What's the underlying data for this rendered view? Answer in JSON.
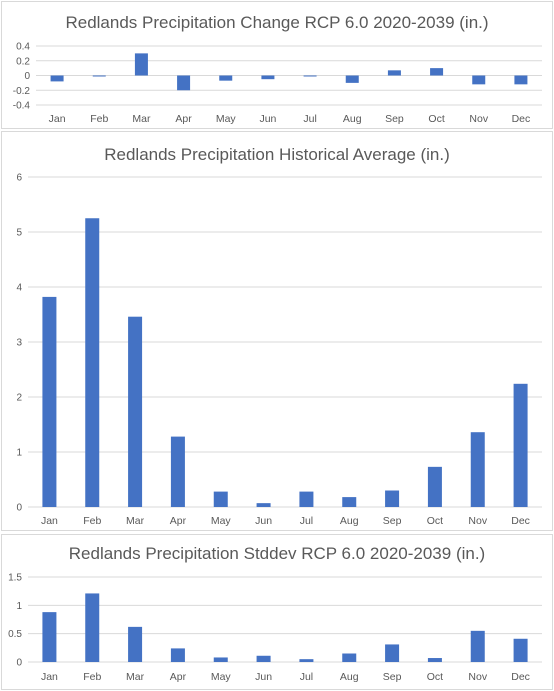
{
  "chart_data": [
    {
      "type": "bar",
      "title": "Redlands Precipitation Change RCP 6.0 2020-2039 (in.)",
      "categories": [
        "Jan",
        "Feb",
        "Mar",
        "Apr",
        "May",
        "Jun",
        "Jul",
        "Aug",
        "Sep",
        "Oct",
        "Nov",
        "Dec"
      ],
      "values": [
        -0.08,
        -0.01,
        0.3,
        -0.2,
        -0.07,
        -0.05,
        -0.01,
        -0.1,
        0.07,
        0.1,
        -0.12,
        -0.12
      ],
      "ylim": [
        -0.4,
        0.4
      ],
      "yticks": [
        "0.4",
        "0.2",
        "0",
        "-0.2",
        "-0.4"
      ],
      "xlabel": "",
      "ylabel": "",
      "grid": true,
      "bar_color": "#4472c4"
    },
    {
      "type": "bar",
      "title": "Redlands Precipitation Historical Average (in.)",
      "categories": [
        "Jan",
        "Feb",
        "Mar",
        "Apr",
        "May",
        "Jun",
        "Jul",
        "Aug",
        "Sep",
        "Oct",
        "Nov",
        "Dec"
      ],
      "values": [
        3.82,
        5.25,
        3.46,
        1.28,
        0.28,
        0.07,
        0.28,
        0.18,
        0.3,
        0.73,
        1.36,
        2.24
      ],
      "ylim": [
        0,
        6
      ],
      "yticks": [
        "6",
        "5",
        "4",
        "3",
        "2",
        "1",
        "0"
      ],
      "xlabel": "",
      "ylabel": "",
      "grid": true,
      "bar_color": "#4472c4"
    },
    {
      "type": "bar",
      "title": "Redlands Precipitation Stddev RCP 6.0 2020-2039 (in.)",
      "categories": [
        "Jan",
        "Feb",
        "Mar",
        "Apr",
        "May",
        "Jun",
        "Jul",
        "Aug",
        "Sep",
        "Oct",
        "Nov",
        "Dec"
      ],
      "values": [
        0.88,
        1.21,
        0.62,
        0.24,
        0.08,
        0.11,
        0.05,
        0.15,
        0.31,
        0.07,
        0.55,
        0.41
      ],
      "ylim": [
        0,
        1.5
      ],
      "yticks": [
        "1.5",
        "1",
        "0.5",
        "0"
      ],
      "xlabel": "",
      "ylabel": "",
      "grid": true,
      "bar_color": "#4472c4"
    }
  ]
}
